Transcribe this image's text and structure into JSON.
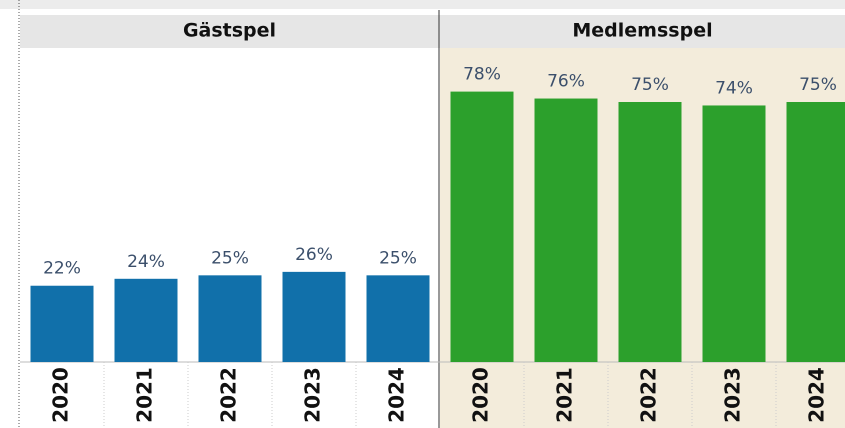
{
  "chart_data": [
    {
      "type": "bar",
      "title": "Gästspel",
      "categories": [
        "2020",
        "2021",
        "2022",
        "2023",
        "2024"
      ],
      "values": [
        22,
        24,
        25,
        26,
        25
      ],
      "value_labels": [
        "22%",
        "24%",
        "25%",
        "26%",
        "25%"
      ],
      "color": "#1170aa",
      "ylim": [
        0,
        90
      ]
    },
    {
      "type": "bar",
      "title": "Medlemsspel",
      "categories": [
        "2020",
        "2021",
        "2022",
        "2023",
        "2024"
      ],
      "values": [
        78,
        76,
        75,
        74,
        75
      ],
      "value_labels": [
        "78%",
        "76%",
        "75%",
        "74%",
        "75%"
      ],
      "color": "#2ca02c",
      "ylim": [
        0,
        90
      ]
    }
  ]
}
